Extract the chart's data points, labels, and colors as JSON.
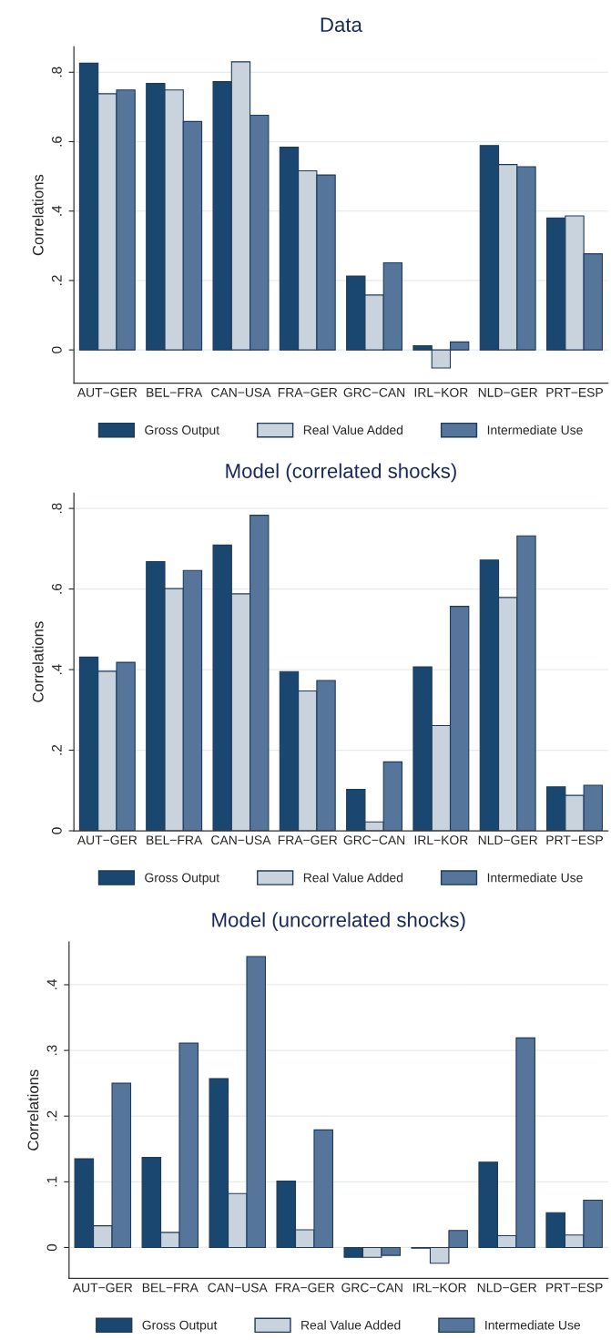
{
  "chart_data": [
    {
      "type": "bar",
      "title": "Data",
      "ylabel": "Correlations",
      "categories": [
        "AUT−GER",
        "BEL−FRA",
        "CAN−USA",
        "FRA−GER",
        "GRC−CAN",
        "IRL−KOR",
        "NLD−GER",
        "PRT−ESP"
      ],
      "series": [
        {
          "name": "Gross Output",
          "color": "#1a476f",
          "values": [
            0.826,
            0.768,
            0.773,
            0.584,
            0.213,
            0.012,
            0.589,
            0.38
          ]
        },
        {
          "name": "Real Value Added",
          "color": "#c9d3dd",
          "values": [
            0.738,
            0.749,
            0.83,
            0.516,
            0.158,
            -0.052,
            0.534,
            0.386
          ]
        },
        {
          "name": "Intermediate Use",
          "color": "#55759a",
          "values": [
            0.749,
            0.658,
            0.676,
            0.504,
            0.251,
            0.023,
            0.528,
            0.277
          ]
        }
      ],
      "ylim": [
        -0.096,
        0.873
      ],
      "yticks": [
        {
          "value": 0,
          "label": "0"
        },
        {
          "value": 0.2,
          "label": ".2"
        },
        {
          "value": 0.4,
          "label": ".4"
        },
        {
          "value": 0.6,
          "label": ".6"
        },
        {
          "value": 0.8,
          "label": ".8"
        }
      ],
      "grid": "y",
      "legend": "bottom"
    },
    {
      "type": "bar",
      "title": "Model (correlated shocks)",
      "ylabel": "Correlations",
      "categories": [
        "AUT−GER",
        "BEL−FRA",
        "CAN−USA",
        "FRA−GER",
        "GRC−CAN",
        "IRL−KOR",
        "NLD−GER",
        "PRT−ESP"
      ],
      "series": [
        {
          "name": "Gross Output",
          "color": "#1a476f",
          "values": [
            0.431,
            0.668,
            0.709,
            0.395,
            0.103,
            0.407,
            0.672,
            0.109
          ]
        },
        {
          "name": "Real Value Added",
          "color": "#c9d3dd",
          "values": [
            0.396,
            0.601,
            0.588,
            0.347,
            0.022,
            0.261,
            0.579,
            0.088
          ]
        },
        {
          "name": "Intermediate Use",
          "color": "#55759a",
          "values": [
            0.418,
            0.646,
            0.783,
            0.373,
            0.171,
            0.557,
            0.732,
            0.113
          ]
        }
      ],
      "ylim": [
        0,
        0.838
      ],
      "yticks": [
        {
          "value": 0,
          "label": "0"
        },
        {
          "value": 0.2,
          "label": ".2"
        },
        {
          "value": 0.4,
          "label": ".4"
        },
        {
          "value": 0.6,
          "label": ".6"
        },
        {
          "value": 0.8,
          "label": ".8"
        }
      ],
      "grid": "y",
      "legend": "bottom"
    },
    {
      "type": "bar",
      "title": "Model (uncorrelated shocks)",
      "ylabel": "Correlations",
      "categories": [
        "AUT−GER",
        "BEL−FRA",
        "CAN−USA",
        "FRA−GER",
        "GRC−CAN",
        "IRL−KOR",
        "NLD−GER",
        "PRT−ESP"
      ],
      "series": [
        {
          "name": "Gross Output",
          "color": "#1a476f",
          "values": [
            0.135,
            0.137,
            0.257,
            0.101,
            -0.015,
            -0.001,
            0.13,
            0.053
          ]
        },
        {
          "name": "Real Value Added",
          "color": "#c9d3dd",
          "values": [
            0.033,
            0.023,
            0.082,
            0.027,
            -0.015,
            -0.024,
            0.018,
            0.019
          ]
        },
        {
          "name": "Intermediate Use",
          "color": "#55759a",
          "values": [
            0.25,
            0.311,
            0.443,
            0.179,
            -0.012,
            0.026,
            0.319,
            0.072
          ]
        }
      ],
      "ylim": [
        -0.047,
        0.465
      ],
      "yticks": [
        {
          "value": 0,
          "label": "0"
        },
        {
          "value": 0.1,
          "label": ".1"
        },
        {
          "value": 0.2,
          "label": ".2"
        },
        {
          "value": 0.3,
          "label": ".3"
        },
        {
          "value": 0.4,
          "label": ".4"
        }
      ],
      "grid": "y",
      "legend": "bottom"
    }
  ]
}
